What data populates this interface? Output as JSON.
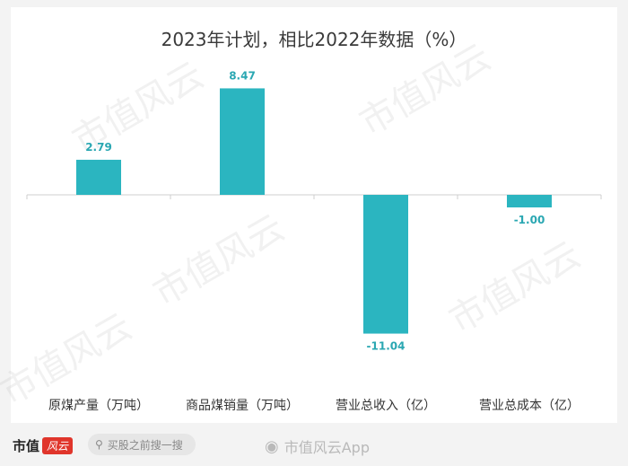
{
  "chart_data": {
    "type": "bar",
    "title": "2023年计划，相比2022年数据（%）",
    "categories": [
      "原煤产量（万吨）",
      "商品煤销量（万吨）",
      "营业总收入（亿）",
      "营业总成本（亿）"
    ],
    "values": [
      2.79,
      8.47,
      -11.04,
      -1.0
    ],
    "data_labels": [
      "2.79",
      "8.47",
      "-11.04",
      "-1.00"
    ],
    "ylim": [
      -12,
      9
    ],
    "xlabel": "",
    "ylabel": "",
    "grid": false,
    "bar_color": "#2bb5c0",
    "label_color": "#2aa7b2"
  },
  "footer": {
    "logo_text": "市值",
    "logo_badge": "风云",
    "search_placeholder": "买股之前搜一搜",
    "watermark_text": "市值风云App"
  },
  "background_watermark": "市值风云"
}
